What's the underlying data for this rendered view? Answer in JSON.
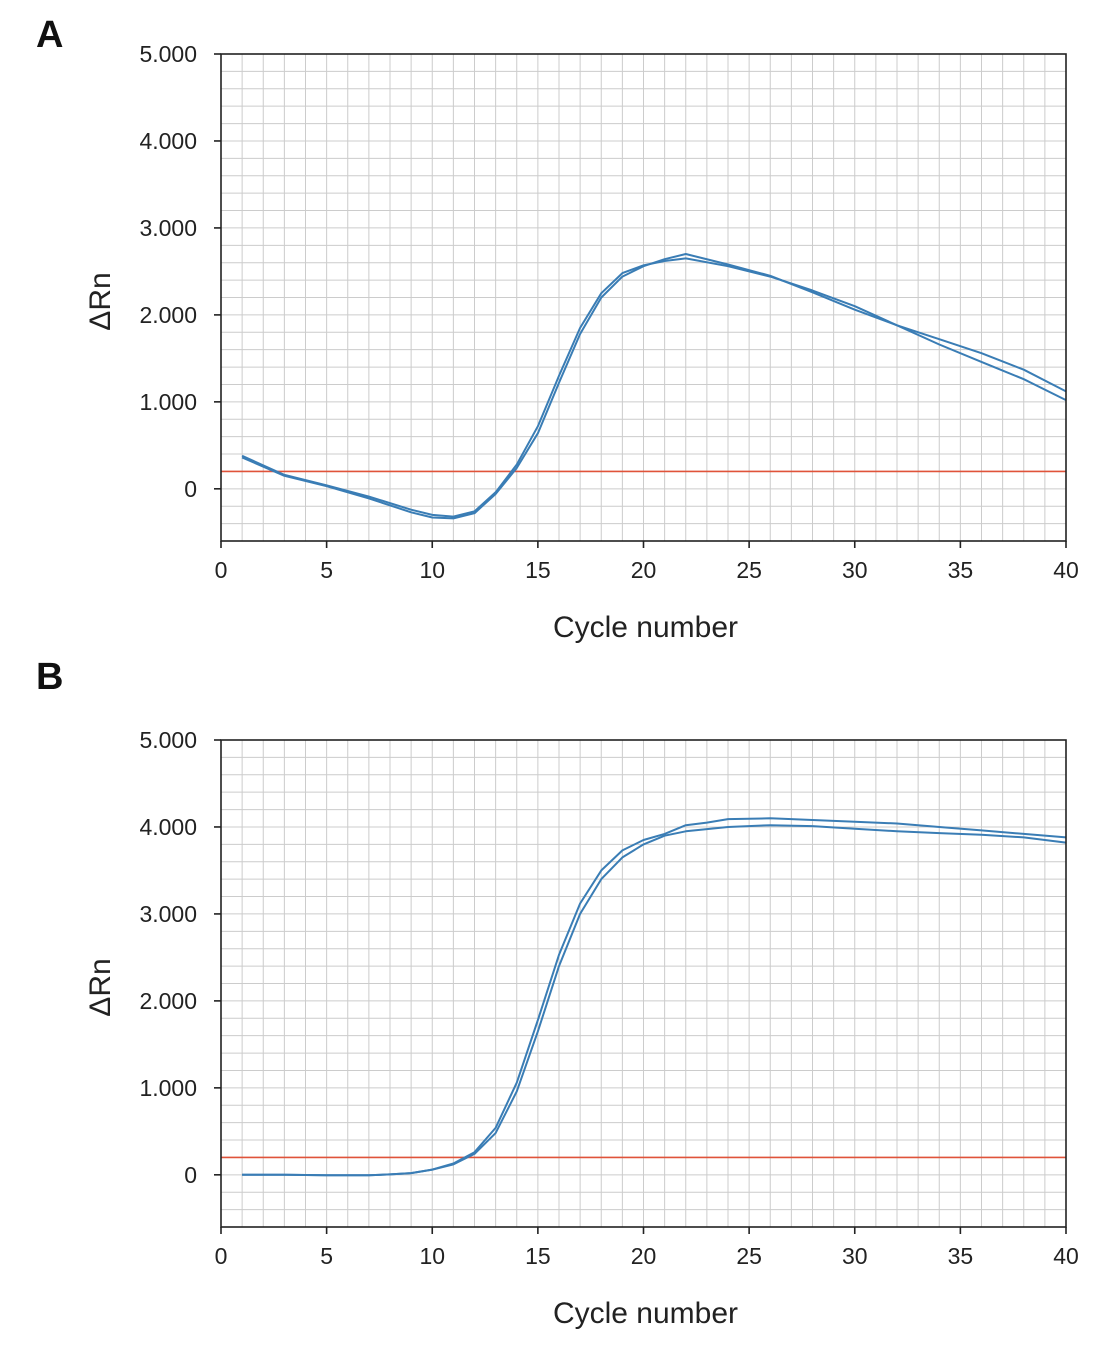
{
  "chart_data": [
    {
      "panel_label": "A",
      "type": "line",
      "xlabel": "Cycle number",
      "ylabel": "ΔRn",
      "xlim": [
        0,
        40
      ],
      "ylim": [
        -600,
        5000
      ],
      "x_ticks": [
        "0",
        "5",
        "10",
        "15",
        "20",
        "25",
        "30",
        "35",
        "40"
      ],
      "y_ticks": [
        "5.000",
        "4.000",
        "3.000",
        "2.000",
        "1.000",
        "0"
      ],
      "y_tick_values": [
        5000,
        4000,
        3000,
        2000,
        1000,
        0
      ],
      "grid": true,
      "threshold": 200,
      "colors": {
        "series": "#3a7db5",
        "threshold": "#e0533a",
        "grid": "#cccccc",
        "axes": "#222222"
      },
      "series": [
        {
          "values": [
            [
              1,
              380
            ],
            [
              3,
              160
            ],
            [
              5,
              40
            ],
            [
              7,
              -90
            ],
            [
              9,
              -240
            ],
            [
              10,
              -300
            ],
            [
              11,
              -320
            ],
            [
              12,
              -260
            ],
            [
              13,
              -40
            ],
            [
              14,
              280
            ],
            [
              15,
              720
            ],
            [
              16,
              1300
            ],
            [
              17,
              1850
            ],
            [
              18,
              2250
            ],
            [
              19,
              2480
            ],
            [
              20,
              2570
            ],
            [
              21,
              2620
            ],
            [
              22,
              2650
            ],
            [
              24,
              2560
            ],
            [
              26,
              2440
            ],
            [
              28,
              2280
            ],
            [
              30,
              2100
            ],
            [
              32,
              1880
            ],
            [
              34,
              1660
            ],
            [
              36,
              1460
            ],
            [
              38,
              1260
            ],
            [
              40,
              1020
            ]
          ]
        },
        {
          "values": [
            [
              1,
              360
            ],
            [
              3,
              150
            ],
            [
              5,
              30
            ],
            [
              7,
              -110
            ],
            [
              9,
              -270
            ],
            [
              10,
              -330
            ],
            [
              11,
              -340
            ],
            [
              12,
              -280
            ],
            [
              13,
              -60
            ],
            [
              14,
              240
            ],
            [
              15,
              640
            ],
            [
              16,
              1220
            ],
            [
              17,
              1780
            ],
            [
              18,
              2200
            ],
            [
              19,
              2440
            ],
            [
              20,
              2560
            ],
            [
              21,
              2640
            ],
            [
              22,
              2700
            ],
            [
              24,
              2580
            ],
            [
              26,
              2450
            ],
            [
              28,
              2260
            ],
            [
              30,
              2060
            ],
            [
              32,
              1880
            ],
            [
              34,
              1720
            ],
            [
              36,
              1560
            ],
            [
              38,
              1370
            ],
            [
              40,
              1120
            ]
          ]
        }
      ]
    },
    {
      "panel_label": "B",
      "type": "line",
      "xlabel": "Cycle number",
      "ylabel": "ΔRn",
      "xlim": [
        0,
        40
      ],
      "ylim": [
        -600,
        5000
      ],
      "x_ticks": [
        "0",
        "5",
        "10",
        "15",
        "20",
        "25",
        "30",
        "35",
        "40"
      ],
      "y_ticks": [
        "5.000",
        "4.000",
        "3.000",
        "2.000",
        "1.000",
        "0"
      ],
      "y_tick_values": [
        5000,
        4000,
        3000,
        2000,
        1000,
        0
      ],
      "grid": true,
      "threshold": 200,
      "colors": {
        "series": "#3a7db5",
        "threshold": "#e0533a",
        "grid": "#cccccc",
        "axes": "#222222"
      },
      "series": [
        {
          "values": [
            [
              1,
              0
            ],
            [
              3,
              0
            ],
            [
              5,
              -5
            ],
            [
              7,
              -5
            ],
            [
              8,
              5
            ],
            [
              9,
              20
            ],
            [
              10,
              60
            ],
            [
              11,
              120
            ],
            [
              12,
              240
            ],
            [
              13,
              480
            ],
            [
              14,
              960
            ],
            [
              15,
              1650
            ],
            [
              16,
              2400
            ],
            [
              17,
              3000
            ],
            [
              18,
              3400
            ],
            [
              19,
              3650
            ],
            [
              20,
              3800
            ],
            [
              21,
              3900
            ],
            [
              22,
              3950
            ],
            [
              24,
              4000
            ],
            [
              26,
              4020
            ],
            [
              28,
              4010
            ],
            [
              30,
              3980
            ],
            [
              32,
              3950
            ],
            [
              34,
              3930
            ],
            [
              36,
              3910
            ],
            [
              38,
              3880
            ],
            [
              40,
              3820
            ]
          ]
        },
        {
          "values": [
            [
              1,
              0
            ],
            [
              3,
              0
            ],
            [
              5,
              -5
            ],
            [
              7,
              -5
            ],
            [
              8,
              5
            ],
            [
              9,
              20
            ],
            [
              10,
              60
            ],
            [
              11,
              130
            ],
            [
              12,
              260
            ],
            [
              13,
              540
            ],
            [
              14,
              1060
            ],
            [
              15,
              1780
            ],
            [
              16,
              2530
            ],
            [
              17,
              3120
            ],
            [
              18,
              3500
            ],
            [
              19,
              3730
            ],
            [
              20,
              3850
            ],
            [
              21,
              3920
            ],
            [
              22,
              4020
            ],
            [
              23,
              4050
            ],
            [
              24,
              4090
            ],
            [
              26,
              4100
            ],
            [
              28,
              4080
            ],
            [
              30,
              4060
            ],
            [
              32,
              4040
            ],
            [
              34,
              4000
            ],
            [
              36,
              3960
            ],
            [
              38,
              3920
            ],
            [
              40,
              3880
            ]
          ]
        }
      ]
    }
  ]
}
